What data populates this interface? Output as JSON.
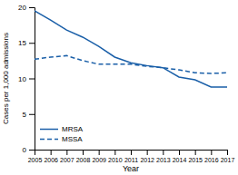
{
  "chart_data": {
    "type": "line",
    "x": [
      2005,
      2006,
      2007,
      2008,
      2009,
      2010,
      2011,
      2012,
      2013,
      2014,
      2015,
      2016,
      2017
    ],
    "series": [
      {
        "name": "MRSA",
        "color": "#1a5fa8",
        "line_style": "solid",
        "values": [
          19.5,
          18.2,
          16.8,
          15.8,
          14.5,
          13.0,
          12.2,
          11.8,
          11.5,
          10.2,
          9.8,
          8.8,
          8.8
        ]
      },
      {
        "name": "MSSA",
        "color": "#1a5fa8",
        "line_style": "dashed",
        "values": [
          12.7,
          13.0,
          13.2,
          12.5,
          12.0,
          12.0,
          12.0,
          11.7,
          11.5,
          11.2,
          10.8,
          10.7,
          10.8
        ]
      }
    ],
    "xlabel": "Year",
    "ylabel": "Cases per 1,000 admissions",
    "xlim": [
      2005,
      2017
    ],
    "xticks": [
      2005,
      2006,
      2007,
      2008,
      2009,
      2010,
      2011,
      2012,
      2013,
      2014,
      2015,
      2016,
      2017
    ],
    "ylim": [
      0,
      20
    ],
    "yticks": [
      0,
      5,
      10,
      15,
      20
    ],
    "legend": "lower left"
  }
}
